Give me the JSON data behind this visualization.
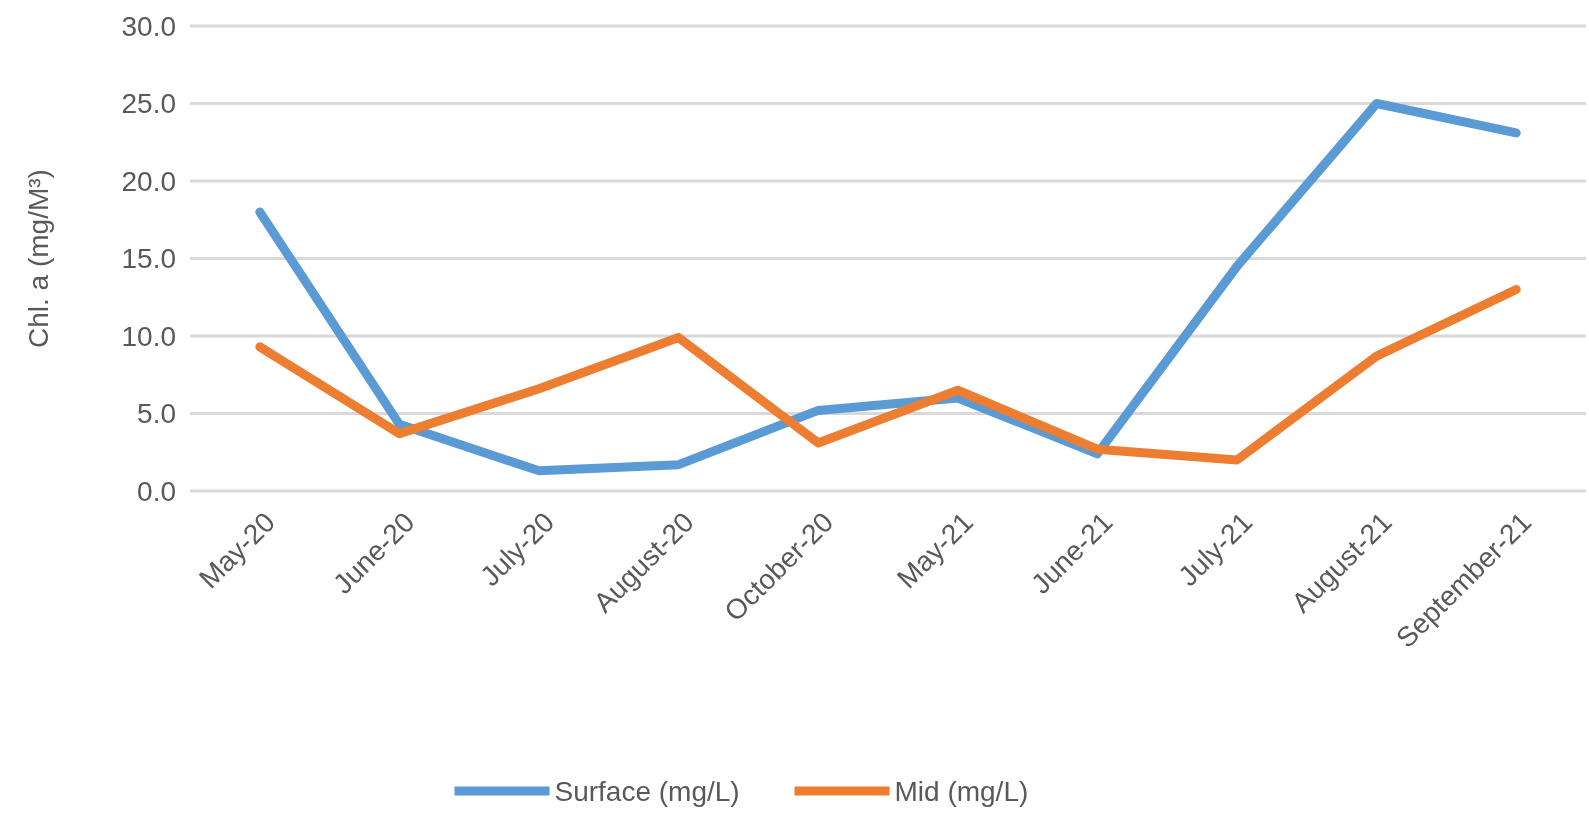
{
  "chart_data": {
    "type": "line",
    "ylabel": "Chl. a (mg/M³)",
    "categories": [
      "May-20",
      "June-20",
      "July-20",
      "August-20",
      "October-20",
      "May-21",
      "June-21",
      "July-21",
      "August-21",
      "September-21"
    ],
    "series": [
      {
        "name": "Surface (mg/L)",
        "color": "#5b9bd5",
        "values": [
          18.0,
          4.3,
          1.3,
          1.7,
          5.2,
          6.0,
          2.4,
          14.5,
          25.0,
          23.1
        ]
      },
      {
        "name": "Mid (mg/L)",
        "color": "#ed7d31",
        "values": [
          9.3,
          3.7,
          6.6,
          9.9,
          3.1,
          6.5,
          2.7,
          2.0,
          8.7,
          13.0
        ]
      }
    ],
    "ylim": [
      0,
      30
    ],
    "yticks": [
      {
        "value": 0,
        "label": "0.0"
      },
      {
        "value": 5,
        "label": "5.0"
      },
      {
        "value": 10,
        "label": "10.0"
      },
      {
        "value": 15,
        "label": "15.0"
      },
      {
        "value": 20,
        "label": "20.0"
      },
      {
        "value": 25,
        "label": "25.0"
      },
      {
        "value": 30,
        "label": "30.0"
      }
    ],
    "grid": "y",
    "legend": "bottom",
    "marker": "none",
    "line_style": "solid"
  }
}
